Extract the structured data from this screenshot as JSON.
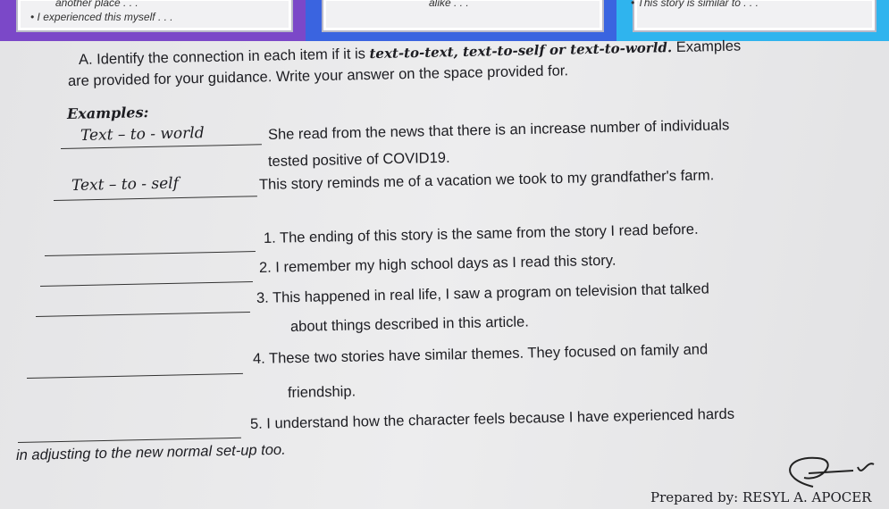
{
  "top_banner": {
    "colors": [
      "#7b48c8",
      "#3a64e0",
      "#2fb4ee"
    ],
    "left_box": [
      "another place . . .",
      "I experienced this myself . . ."
    ],
    "middle_box": [
      "alike . . ."
    ],
    "right_box": [
      "This story is similar to . . ."
    ]
  },
  "instructions": {
    "line1_prefix": "A. Identify the connection in each item if it is ",
    "line1_types": "text-to-text, text-to-self or text-to-world.",
    "line1_suffix": " Examples",
    "line2": "are provided for your guidance. Write your answer on the space provided for."
  },
  "examples": {
    "heading": "Examples:",
    "items": [
      {
        "answer": "Text – to - world",
        "text": "She read from the news that there is an increase number of individuals",
        "text_cont": "tested positive of COVID19."
      },
      {
        "answer": "Text – to - self",
        "text": "This story reminds me of a vacation we took to my grandfather's farm."
      }
    ]
  },
  "items": [
    {
      "text": "1. The ending of this story is the same from the story I read before."
    },
    {
      "text": "2. I remember my high school days as I read this story."
    },
    {
      "text": "3. This happened in real life, I saw a program on television that talked",
      "cont": "about things described in this article."
    },
    {
      "text": "4. These two stories have similar themes. They focused on family and",
      "cont": "friendship."
    },
    {
      "text": "5. I understand how the character feels because I have experienced hards",
      "cont": "in adjusting to the new normal set-up too."
    }
  ],
  "footer": {
    "prepared_by": "Prepared by: RESYL A. APOCER"
  }
}
